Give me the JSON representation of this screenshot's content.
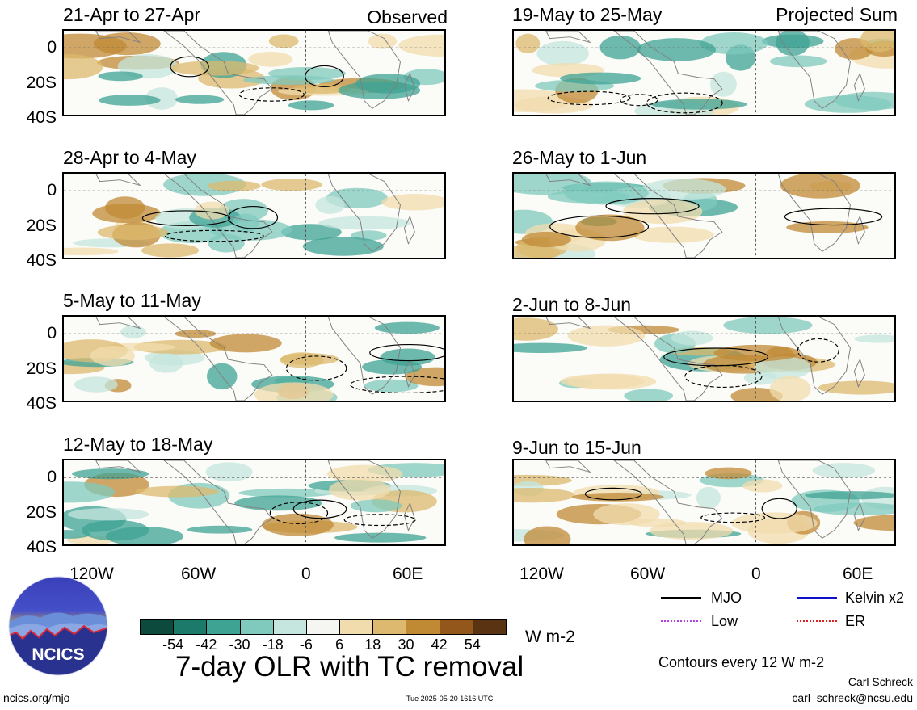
{
  "figure": {
    "title": "7-day OLR with TC removal",
    "units": "W m-2",
    "contour_note": "Contours every 12 W m-2",
    "author": "Carl Schreck",
    "email": "carl_schreck@ncsu.edu",
    "website": "ncics.org/mjo",
    "timestamp": "Tue 2025-05-20 1616 UTC",
    "logo_text": "NCICS"
  },
  "columns": {
    "left_tag": "Observed",
    "right_tag": "Projected Sum"
  },
  "panels_left": [
    {
      "title": "21-Apr to 27-Apr"
    },
    {
      "title": "28-Apr to 4-May"
    },
    {
      "title": "5-May to 11-May"
    },
    {
      "title": "12-May to 18-May"
    }
  ],
  "panels_right": [
    {
      "title": "19-May to 25-May"
    },
    {
      "title": "26-May to 1-Jun"
    },
    {
      "title": "2-Jun to 8-Jun"
    },
    {
      "title": "9-Jun to 15-Jun"
    }
  ],
  "axes": {
    "lat_labels": [
      "0",
      "20S",
      "40S"
    ],
    "lon_labels": [
      "120W",
      "60W",
      "0",
      "60E"
    ]
  },
  "colorbar": {
    "ticks": [
      "-54",
      "-42",
      "-30",
      "-18",
      "-6",
      "6",
      "18",
      "30",
      "42",
      "54"
    ],
    "colors": [
      "#0b4a3c",
      "#1b7a6a",
      "#3fa394",
      "#7fcabd",
      "#c4e6de",
      "#f5f5f2",
      "#f1dcae",
      "#dcb96e",
      "#c08a35",
      "#93571c",
      "#5a3412"
    ]
  },
  "legend": [
    {
      "label": "MJO",
      "color": "#000000"
    },
    {
      "label": "Kelvin x2",
      "color": "#1010c8"
    },
    {
      "label": "Low",
      "color": "#b040e0"
    },
    {
      "label": "ER",
      "color": "#e02020"
    }
  ]
}
